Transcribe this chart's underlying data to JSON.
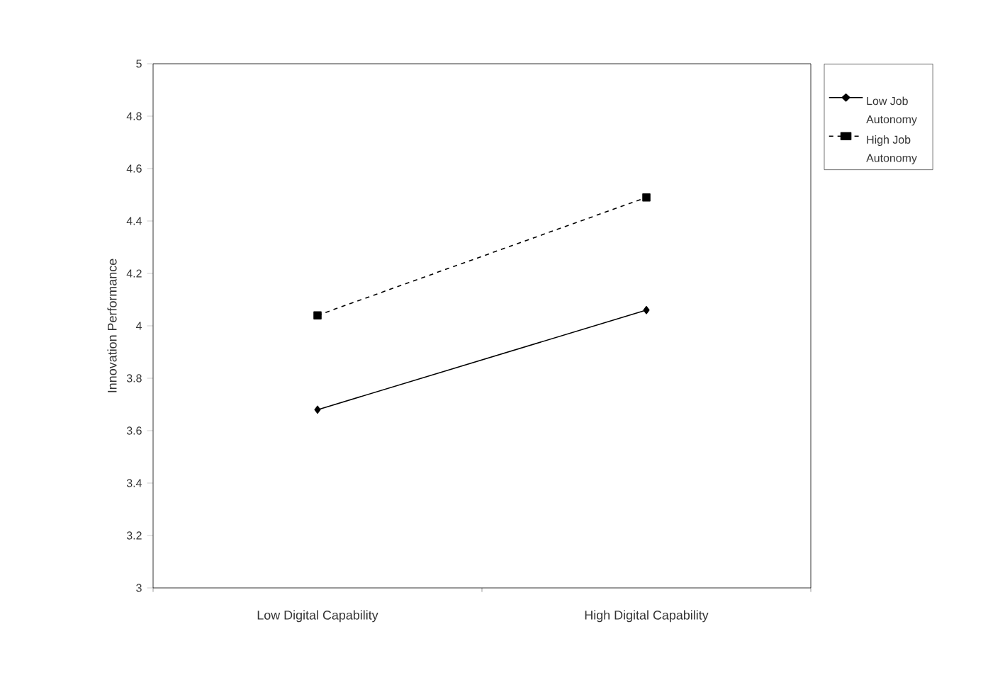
{
  "chart_data": {
    "type": "line",
    "ylabel": "Innovation Performance",
    "categories": [
      "Low Digital Capability",
      "High Digital Capability"
    ],
    "series": [
      {
        "name": "Low Job Autonomy",
        "color": "#000000",
        "values": [
          3.68,
          4.06
        ],
        "marker": "diamond",
        "line_style": "solid"
      },
      {
        "name": "High Job Autonomy",
        "color": "#000000",
        "values": [
          4.04,
          4.49
        ],
        "marker": "square",
        "line_style": "dashed"
      }
    ],
    "ylim": [
      3,
      5
    ],
    "yticks": [
      3,
      3.2,
      3.4,
      3.6,
      3.8,
      4,
      4.2,
      4.4,
      4.6,
      4.8,
      5
    ],
    "grid": false,
    "legend": "top right"
  }
}
